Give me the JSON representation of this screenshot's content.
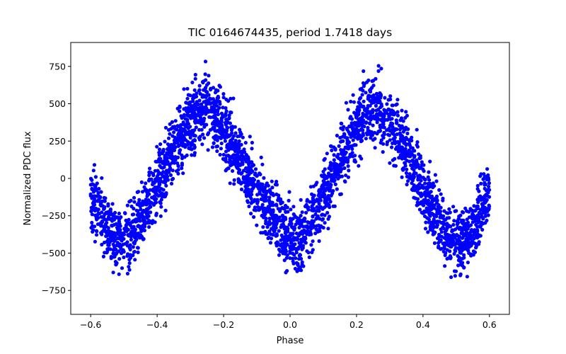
{
  "chart_data": {
    "type": "scatter",
    "title": "TIC 0164674435, period 1.7418 days",
    "xlabel": "Phase",
    "ylabel": "Normalized PDC flux",
    "xlim": [
      -0.66,
      0.66
    ],
    "ylim": [
      -910,
      910
    ],
    "xticks": [
      -0.6,
      -0.4,
      -0.2,
      0.0,
      0.2,
      0.4,
      0.6
    ],
    "xtick_labels": [
      "−0.6",
      "−0.4",
      "−0.2",
      "0.0",
      "0.2",
      "0.4",
      "0.6"
    ],
    "yticks": [
      -750,
      -500,
      -250,
      0,
      250,
      500,
      750
    ],
    "ytick_labels": [
      "−750",
      "−500",
      "−250",
      "0",
      "250",
      "500",
      "750"
    ],
    "grid": false,
    "marker_color": "#0000ff",
    "series": [
      {
        "values_description_omitted": true,
        "curve": [
          [
            -0.6,
            -100
          ],
          [
            -0.56,
            -300
          ],
          [
            -0.52,
            -420
          ],
          [
            -0.48,
            -380
          ],
          [
            -0.44,
            -240
          ],
          [
            -0.4,
            -60
          ],
          [
            -0.36,
            140
          ],
          [
            -0.32,
            330
          ],
          [
            -0.28,
            440
          ],
          [
            -0.25,
            470
          ],
          [
            -0.22,
            400
          ],
          [
            -0.18,
            250
          ],
          [
            -0.14,
            90
          ],
          [
            -0.1,
            -80
          ],
          [
            -0.06,
            -230
          ],
          [
            -0.02,
            -360
          ],
          [
            0.0,
            -400
          ],
          [
            0.03,
            -420
          ],
          [
            0.06,
            -300
          ],
          [
            0.1,
            -120
          ],
          [
            0.14,
            80
          ],
          [
            0.18,
            260
          ],
          [
            0.22,
            410
          ],
          [
            0.25,
            460
          ],
          [
            0.28,
            430
          ],
          [
            0.32,
            320
          ],
          [
            0.36,
            140
          ],
          [
            0.4,
            -60
          ],
          [
            0.44,
            -240
          ],
          [
            0.48,
            -390
          ],
          [
            0.52,
            -420
          ],
          [
            0.56,
            -300
          ],
          [
            0.6,
            -80
          ]
        ],
        "spread": 200
      }
    ]
  }
}
